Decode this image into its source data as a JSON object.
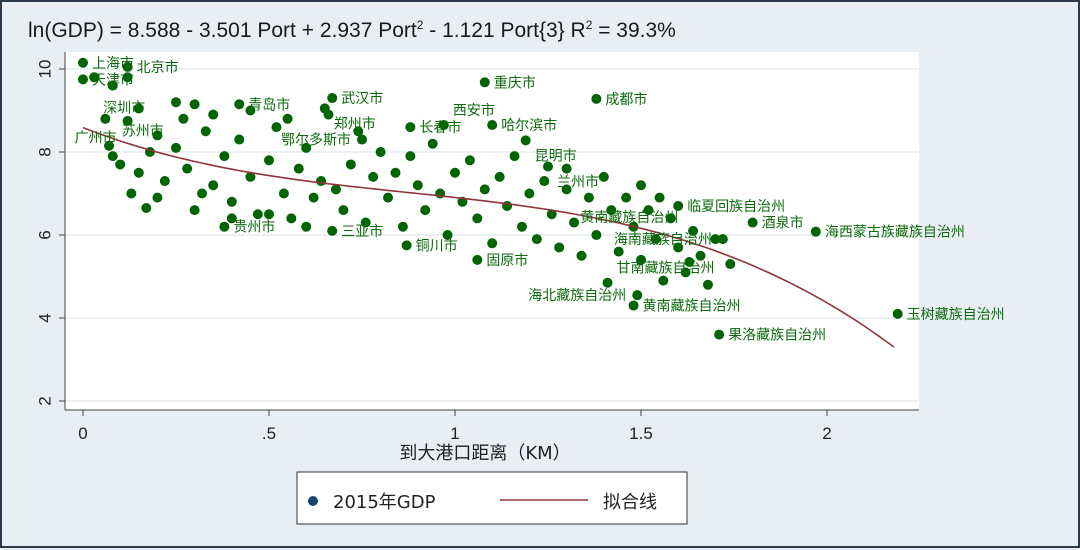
{
  "chart_data": {
    "type": "scatter",
    "title_parts": {
      "lhs": "ln(GDP) = 8.588 - 3.501 Port + 2.937 Port",
      "exp2": "2",
      "mid": " - 1.121 Port{3}  R",
      "r_exp": "2",
      "rhs": " = 39.3%"
    },
    "xlabel": "到大港口距离（KM）",
    "ylabel": "",
    "xlim": [
      -0.05,
      2.22
    ],
    "ylim": [
      1.6,
      10.4
    ],
    "xticks": [
      {
        "v": 0,
        "t": "0"
      },
      {
        "v": 0.5,
        "t": ".5"
      },
      {
        "v": 1,
        "t": "1"
      },
      {
        "v": 1.5,
        "t": "1.5"
      },
      {
        "v": 2,
        "t": "2"
      }
    ],
    "yticks": [
      {
        "v": 2,
        "t": "2"
      },
      {
        "v": 4,
        "t": "4"
      },
      {
        "v": 6,
        "t": "6"
      },
      {
        "v": 8,
        "t": "8"
      },
      {
        "v": 10,
        "t": "10"
      }
    ],
    "grid": true,
    "legend": {
      "position": "bottom",
      "items": [
        {
          "label": "2015年GDP",
          "color": "#1a476f",
          "kind": "marker"
        },
        {
          "label": "拟合线",
          "color": "#90353b",
          "kind": "line"
        }
      ]
    },
    "fit": {
      "coef": [
        8.588,
        -3.501,
        2.937,
        -1.121
      ],
      "r2": "39.3%",
      "x_range": [
        0,
        2.19
      ],
      "color": "#90353b"
    },
    "point_color": "#006400",
    "points": [
      [
        0.0,
        10.15,
        "上海市"
      ],
      [
        0.12,
        10.05,
        "北京市"
      ],
      [
        0.0,
        9.75,
        "天津市"
      ],
      [
        0.03,
        9.8,
        "深圳市"
      ],
      [
        0.08,
        9.6,
        "苏州市"
      ],
      [
        0.12,
        9.8,
        "广州市"
      ],
      [
        1.08,
        9.68,
        "重庆市"
      ],
      [
        1.38,
        9.28,
        "成都市"
      ],
      [
        0.67,
        9.3,
        "武汉市"
      ],
      [
        0.42,
        9.15,
        "青岛市"
      ],
      [
        0.65,
        9.05,
        "郑州市"
      ],
      [
        0.88,
        8.6,
        "长春市"
      ],
      [
        0.97,
        8.65,
        "西安市"
      ],
      [
        1.1,
        8.65,
        "哈尔滨市"
      ],
      [
        1.19,
        8.28,
        "昆明市"
      ],
      [
        0.75,
        8.3,
        "鄂尔多斯市"
      ],
      [
        1.25,
        7.65,
        "兰州市"
      ],
      [
        1.8,
        6.3,
        "酒泉市"
      ],
      [
        1.97,
        6.08,
        "海西蒙古族藏族自治州"
      ],
      [
        2.19,
        4.1,
        "玉树藏族自治州"
      ],
      [
        1.71,
        3.6,
        "果洛藏族自治州"
      ],
      [
        1.06,
        5.4,
        "固原市"
      ],
      [
        0.87,
        5.75,
        "铜川市"
      ],
      [
        1.48,
        4.3,
        "黄南藏族自治州"
      ],
      [
        1.49,
        4.55,
        "海北藏族自治州"
      ],
      [
        1.41,
        4.85,
        "甘南藏族自治州"
      ],
      [
        0.67,
        6.1,
        "三亚市"
      ],
      [
        0.38,
        6.2,
        "贵州市"
      ],
      [
        1.6,
        6.7,
        "临夏回族自治州"
      ],
      [
        1.72,
        5.9,
        "海南藏族自治州"
      ],
      [
        1.63,
        5.35,
        "黄南藏族自治州"
      ],
      [
        0.25,
        9.2,
        ""
      ],
      [
        0.3,
        9.15,
        ""
      ],
      [
        0.15,
        9.05,
        ""
      ],
      [
        0.06,
        8.8,
        ""
      ],
      [
        0.12,
        8.75,
        ""
      ],
      [
        0.07,
        8.15,
        ""
      ],
      [
        0.08,
        7.9,
        ""
      ],
      [
        0.1,
        7.7,
        ""
      ],
      [
        0.13,
        7.0,
        ""
      ],
      [
        0.17,
        6.65,
        ""
      ],
      [
        0.2,
        6.9,
        ""
      ],
      [
        0.22,
        7.3,
        ""
      ],
      [
        0.25,
        8.1,
        ""
      ],
      [
        0.28,
        7.6,
        ""
      ],
      [
        0.3,
        6.6,
        ""
      ],
      [
        0.33,
        8.5,
        ""
      ],
      [
        0.35,
        7.2,
        ""
      ],
      [
        0.38,
        7.9,
        ""
      ],
      [
        0.4,
        6.8,
        ""
      ],
      [
        0.42,
        8.3,
        ""
      ],
      [
        0.45,
        7.4,
        ""
      ],
      [
        0.47,
        6.5,
        ""
      ],
      [
        0.5,
        7.8,
        ""
      ],
      [
        0.52,
        8.6,
        ""
      ],
      [
        0.54,
        7.0,
        ""
      ],
      [
        0.56,
        6.4,
        ""
      ],
      [
        0.58,
        7.6,
        ""
      ],
      [
        0.6,
        8.1,
        ""
      ],
      [
        0.62,
        6.9,
        ""
      ],
      [
        0.64,
        7.3,
        ""
      ],
      [
        0.66,
        8.9,
        ""
      ],
      [
        0.68,
        7.1,
        ""
      ],
      [
        0.7,
        6.6,
        ""
      ],
      [
        0.72,
        7.7,
        ""
      ],
      [
        0.74,
        8.5,
        ""
      ],
      [
        0.76,
        6.3,
        ""
      ],
      [
        0.78,
        7.4,
        ""
      ],
      [
        0.8,
        8.0,
        ""
      ],
      [
        0.82,
        6.9,
        ""
      ],
      [
        0.84,
        7.5,
        ""
      ],
      [
        0.86,
        6.2,
        ""
      ],
      [
        0.88,
        7.9,
        ""
      ],
      [
        0.9,
        7.2,
        ""
      ],
      [
        0.92,
        6.6,
        ""
      ],
      [
        0.94,
        8.2,
        ""
      ],
      [
        0.96,
        7.0,
        ""
      ],
      [
        0.98,
        6.0,
        ""
      ],
      [
        1.0,
        7.5,
        ""
      ],
      [
        1.02,
        6.8,
        ""
      ],
      [
        1.04,
        7.8,
        ""
      ],
      [
        1.06,
        6.4,
        ""
      ],
      [
        1.08,
        7.1,
        ""
      ],
      [
        1.1,
        5.8,
        ""
      ],
      [
        1.12,
        7.4,
        ""
      ],
      [
        1.14,
        6.7,
        ""
      ],
      [
        1.16,
        7.9,
        ""
      ],
      [
        1.18,
        6.2,
        ""
      ],
      [
        1.2,
        7.0,
        ""
      ],
      [
        1.22,
        5.9,
        ""
      ],
      [
        1.24,
        7.3,
        ""
      ],
      [
        1.26,
        6.5,
        ""
      ],
      [
        1.28,
        5.7,
        ""
      ],
      [
        1.3,
        7.1,
        ""
      ],
      [
        1.32,
        6.3,
        ""
      ],
      [
        1.34,
        5.5,
        ""
      ],
      [
        1.36,
        6.9,
        ""
      ],
      [
        1.38,
        6.0,
        ""
      ],
      [
        1.4,
        7.4,
        ""
      ],
      [
        1.42,
        6.6,
        ""
      ],
      [
        1.44,
        5.6,
        ""
      ],
      [
        1.46,
        6.9,
        ""
      ],
      [
        1.48,
        6.2,
        ""
      ],
      [
        1.5,
        5.4,
        ""
      ],
      [
        1.52,
        6.6,
        ""
      ],
      [
        1.54,
        5.9,
        ""
      ],
      [
        1.56,
        4.9,
        ""
      ],
      [
        1.58,
        6.4,
        ""
      ],
      [
        1.6,
        5.7,
        ""
      ],
      [
        1.62,
        5.1,
        ""
      ],
      [
        1.64,
        6.1,
        ""
      ],
      [
        1.66,
        5.5,
        ""
      ],
      [
        1.68,
        4.8,
        ""
      ],
      [
        1.7,
        5.9,
        ""
      ],
      [
        1.74,
        5.3,
        ""
      ],
      [
        0.2,
        8.4,
        ""
      ],
      [
        0.27,
        8.8,
        ""
      ],
      [
        0.35,
        8.9,
        ""
      ],
      [
        0.45,
        9.0,
        ""
      ],
      [
        0.55,
        8.8,
        ""
      ],
      [
        0.6,
        6.2,
        ""
      ],
      [
        0.5,
        6.5,
        ""
      ],
      [
        0.4,
        6.4,
        ""
      ],
      [
        0.32,
        7.0,
        ""
      ],
      [
        0.15,
        7.5,
        ""
      ],
      [
        0.18,
        8.0,
        ""
      ],
      [
        1.5,
        7.2,
        ""
      ],
      [
        1.55,
        6.9,
        ""
      ],
      [
        1.3,
        7.6,
        ""
      ]
    ]
  }
}
